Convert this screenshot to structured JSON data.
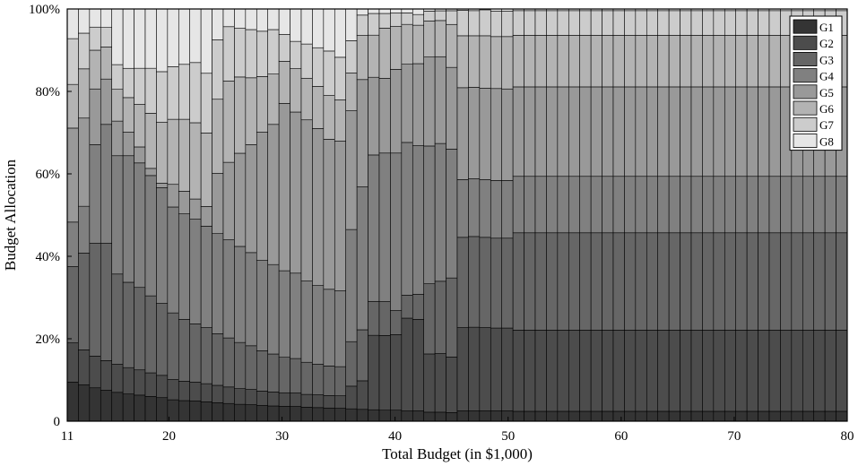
{
  "chart_data": {
    "type": "bar",
    "stacked": true,
    "normalized": true,
    "xlabel": "Total Budget (in $1,000)",
    "ylabel": "Budget Allocation",
    "xlim": [
      11,
      80
    ],
    "ylim": [
      0,
      100
    ],
    "xticks": [
      11,
      20,
      30,
      40,
      50,
      60,
      70,
      80
    ],
    "yticks": [
      0,
      20,
      40,
      60,
      80,
      100
    ],
    "ytick_labels": [
      "0",
      "20%",
      "40%",
      "60%",
      "80%",
      "100%"
    ],
    "legend_position": "top-right",
    "grid": false,
    "x": [
      11,
      12,
      13,
      14,
      15,
      16,
      17,
      18,
      19,
      20,
      21,
      22,
      23,
      24,
      25,
      26,
      27,
      28,
      29,
      30,
      31,
      32,
      33,
      34,
      35,
      36,
      37,
      38,
      39,
      40,
      41,
      42,
      43,
      44,
      45,
      46,
      47,
      48,
      49,
      50,
      51,
      52,
      53,
      54,
      55,
      56,
      57,
      58,
      59,
      60,
      61,
      62,
      63,
      64,
      65,
      66,
      67,
      68,
      69,
      70,
      71,
      72,
      73,
      74,
      75,
      76,
      77,
      78,
      79,
      80
    ],
    "series": [
      {
        "name": "G1",
        "color": "#343434",
        "values": [
          9.5,
          8.9,
          8.1,
          7.5,
          7.0,
          6.6,
          6.2,
          5.9,
          5.6,
          5.3,
          5.1,
          4.9,
          4.7,
          4.5,
          4.3,
          4.1,
          4.0,
          3.8,
          3.7,
          3.6,
          3.5,
          3.4,
          3.3,
          3.2,
          3.1,
          3.0,
          2.9,
          2.8,
          2.7,
          2.7,
          2.6,
          2.6,
          2.5,
          2.5,
          2.5,
          2.5,
          2.5,
          2.5,
          2.5,
          2.5,
          2.4,
          2.4,
          2.4,
          2.4,
          2.4,
          2.4,
          2.4,
          2.4,
          2.4,
          2.4,
          2.4,
          2.4,
          2.4,
          2.4,
          2.4,
          2.4,
          2.4,
          2.4,
          2.4,
          2.4,
          2.4,
          2.4,
          2.4,
          2.4,
          2.4,
          2.4,
          2.4,
          2.4,
          2.4,
          2.4
        ]
      },
      {
        "name": "G2",
        "color": "#4c4c4c",
        "values": [
          9.5,
          8.5,
          7.7,
          7.2,
          6.8,
          6.4,
          6.0,
          5.6,
          5.3,
          5.0,
          4.8,
          4.6,
          4.4,
          4.2,
          4.0,
          3.8,
          3.7,
          3.5,
          3.4,
          3.3,
          3.2,
          3.1,
          3.1,
          3.0,
          3.0,
          5.5,
          7.0,
          18.2,
          18.3,
          18.5,
          23.5,
          23.1,
          16.1,
          16.2,
          16.2,
          20.2,
          20.3,
          20.2,
          20.1,
          20.1,
          19.7,
          19.7,
          19.7,
          19.7,
          19.7,
          19.7,
          19.7,
          19.7,
          19.7,
          19.7,
          19.7,
          19.7,
          19.7,
          19.7,
          19.7,
          19.7,
          19.7,
          19.7,
          19.7,
          19.7,
          19.7,
          19.7,
          19.7,
          19.7,
          19.7,
          19.7,
          19.7,
          19.7,
          19.7,
          19.7
        ]
      },
      {
        "name": "G3",
        "color": "#666666",
        "values": [
          18.5,
          23.6,
          27.4,
          28.5,
          21.9,
          20.7,
          19.6,
          18.3,
          17.1,
          16.5,
          15.3,
          14.1,
          13.6,
          12.5,
          11.9,
          11.2,
          10.6,
          9.8,
          9.2,
          8.6,
          8.2,
          7.8,
          7.4,
          7.2,
          7.0,
          10.8,
          12.5,
          8.3,
          8.3,
          5.9,
          5.8,
          6.3,
          19.4,
          20.0,
          23.0,
          21.9,
          22.0,
          21.9,
          21.8,
          21.8,
          23.6,
          23.6,
          23.6,
          23.6,
          23.6,
          23.6,
          23.6,
          23.6,
          23.6,
          23.6,
          23.6,
          23.6,
          23.6,
          23.6,
          23.6,
          23.6,
          23.6,
          23.6,
          23.6,
          23.6,
          23.6,
          23.6,
          23.6,
          23.6,
          23.6,
          23.6,
          23.6,
          23.6,
          23.6,
          23.6
        ]
      },
      {
        "name": "G4",
        "color": "#808080",
        "values": [
          10.8,
          11.4,
          23.9,
          28.8,
          28.7,
          30.7,
          29.6,
          28.6,
          27.5,
          26.2,
          26.1,
          25.4,
          24.6,
          24.3,
          23.8,
          23.3,
          22.6,
          21.9,
          21.7,
          21.0,
          20.3,
          19.7,
          19.1,
          18.6,
          18.2,
          27.2,
          35.0,
          35.8,
          36.4,
          38.6,
          38.7,
          37.5,
          38.1,
          38.1,
          37.5,
          14.0,
          14.0,
          14.0,
          14.0,
          14.0,
          13.7,
          13.7,
          13.7,
          13.7,
          13.7,
          13.7,
          13.7,
          13.7,
          13.7,
          13.7,
          13.7,
          13.7,
          13.7,
          13.7,
          13.7,
          13.7,
          13.7,
          13.7,
          13.7,
          13.7,
          13.7,
          13.7,
          13.7,
          13.7,
          13.7,
          13.7,
          13.7,
          13.7,
          13.7,
          13.7
        ]
      },
      {
        "name": "G5",
        "color": "#999999",
        "values": [
          22.8,
          21.5,
          13.5,
          11.0,
          8.4,
          5.7,
          3.8,
          1.7,
          1.1,
          5.6,
          5.6,
          4.9,
          4.8,
          14.6,
          18.8,
          22.6,
          26.2,
          31.1,
          34.0,
          40.6,
          38.3,
          39.1,
          38.1,
          36.4,
          36.0,
          28.8,
          26.3,
          19.0,
          18.3,
          20.5,
          19.8,
          20.7,
          24.6,
          24.0,
          23.8,
          22.3,
          22.2,
          22.2,
          22.3,
          22.2,
          21.7,
          21.7,
          21.7,
          21.7,
          21.7,
          21.7,
          21.7,
          21.7,
          21.7,
          21.7,
          21.7,
          21.7,
          21.7,
          21.7,
          21.7,
          21.7,
          21.7,
          21.7,
          21.7,
          21.7,
          21.7,
          21.7,
          21.7,
          21.7,
          21.7,
          21.7,
          21.7,
          21.7,
          21.7,
          21.7
        ]
      },
      {
        "name": "G6",
        "color": "#b3b3b3",
        "values": [
          10.6,
          12.0,
          9.4,
          7.8,
          7.7,
          8.4,
          10.1,
          13.1,
          14.5,
          16.1,
          17.8,
          18.5,
          17.8,
          18.0,
          19.7,
          18.5,
          16.2,
          13.5,
          12.2,
          10.2,
          10.3,
          10.1,
          10.2,
          10.6,
          9.9,
          9.2,
          10.8,
          10.3,
          12.3,
          10.5,
          10.1,
          9.7,
          10.0,
          10.0,
          12.5,
          12.6,
          12.5,
          12.7,
          12.6,
          12.7,
          12.5,
          12.5,
          12.5,
          12.5,
          12.5,
          12.5,
          12.5,
          12.5,
          12.5,
          12.5,
          12.5,
          12.5,
          12.5,
          12.5,
          12.5,
          12.5,
          12.5,
          12.5,
          12.5,
          12.5,
          12.5,
          12.5,
          12.5,
          12.5,
          12.5,
          12.5,
          12.5,
          12.5,
          12.5,
          12.5
        ]
      },
      {
        "name": "G7",
        "color": "#cccccc",
        "values": [
          11.1,
          8.7,
          5.6,
          4.7,
          6.0,
          7.1,
          8.6,
          10.7,
          12.0,
          13.0,
          13.6,
          14.6,
          14.5,
          14.4,
          13.2,
          11.8,
          11.7,
          11.0,
          10.8,
          6.5,
          6.5,
          8.3,
          9.4,
          10.8,
          10.2,
          7.8,
          5.0,
          5.3,
          3.6,
          3.3,
          2.9,
          2.7,
          2.7,
          2.7,
          4.0,
          6.2,
          6.1,
          6.3,
          6.2,
          6.2,
          6.0,
          6.0,
          6.0,
          6.0,
          6.0,
          6.0,
          6.0,
          6.0,
          6.0,
          6.0,
          6.0,
          6.0,
          6.0,
          6.0,
          6.0,
          6.0,
          6.0,
          6.0,
          6.0,
          6.0,
          6.0,
          6.0,
          6.0,
          6.0,
          6.0,
          6.0,
          6.0,
          6.0,
          6.0,
          6.0
        ]
      },
      {
        "name": "G8",
        "color": "#e6e6e6",
        "values": [
          7.2,
          5.9,
          4.4,
          4.5,
          13.5,
          14.4,
          14.1,
          14.1,
          14.9,
          14.3,
          13.7,
          13.0,
          15.6,
          7.5,
          4.3,
          4.7,
          5.0,
          5.4,
          5.0,
          6.2,
          7.7,
          8.5,
          9.4,
          10.2,
          11.6,
          7.7,
          1.5,
          1.1,
          1.1,
          1.0,
          1.0,
          1.4,
          0.6,
          0.5,
          0.5,
          0.3,
          0.4,
          0.2,
          0.5,
          0.5,
          0.4,
          0.4,
          0.4,
          0.4,
          0.4,
          0.4,
          0.4,
          0.4,
          0.4,
          0.4,
          0.4,
          0.4,
          0.4,
          0.4,
          0.4,
          0.4,
          0.4,
          0.4,
          0.4,
          0.4,
          0.4,
          0.4,
          0.4,
          0.4,
          0.4,
          0.4,
          0.4,
          0.4,
          0.4,
          0.4
        ]
      }
    ]
  }
}
